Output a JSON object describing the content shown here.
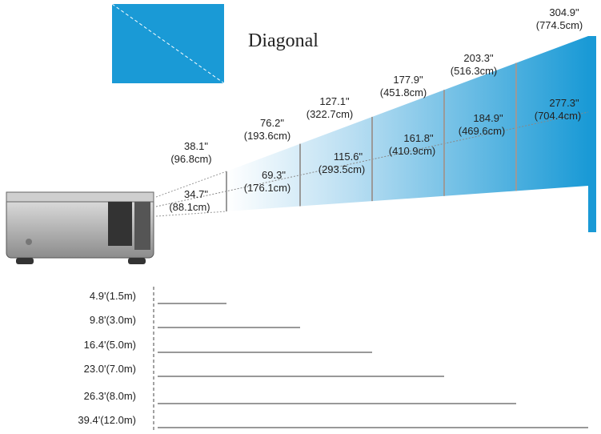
{
  "legend": {
    "label": "Diagonal"
  },
  "screens": [
    {
      "diagonal": "38.1\"",
      "diagonal_cm": "(96.8cm)",
      "width": "34.7\"",
      "width_cm": "(88.1cm)"
    },
    {
      "diagonal": "76.2\"",
      "diagonal_cm": "(193.6cm)",
      "width": "69.3\"",
      "width_cm": "(176.1cm)"
    },
    {
      "diagonal": "127.1\"",
      "diagonal_cm": "(322.7cm)",
      "width": "115.6\"",
      "width_cm": "(293.5cm)"
    },
    {
      "diagonal": "177.9\"",
      "diagonal_cm": "(451.8cm)",
      "width": "161.8\"",
      "width_cm": "(410.9cm)"
    },
    {
      "diagonal": "203.3\"",
      "diagonal_cm": "(516.3cm)",
      "width": "184.9\"",
      "width_cm": "(469.6cm)"
    },
    {
      "diagonal": "304.9\"",
      "diagonal_cm": "(774.5cm)",
      "width": "277.3\"",
      "width_cm": "(704.4cm)"
    }
  ],
  "distances": [
    "4.9'(1.5m)",
    "9.8'(3.0m)",
    "16.4'(5.0m)",
    "23.0'(7.0m)",
    "26.3'(8.0m)",
    "39.4'(12.0m)"
  ]
}
